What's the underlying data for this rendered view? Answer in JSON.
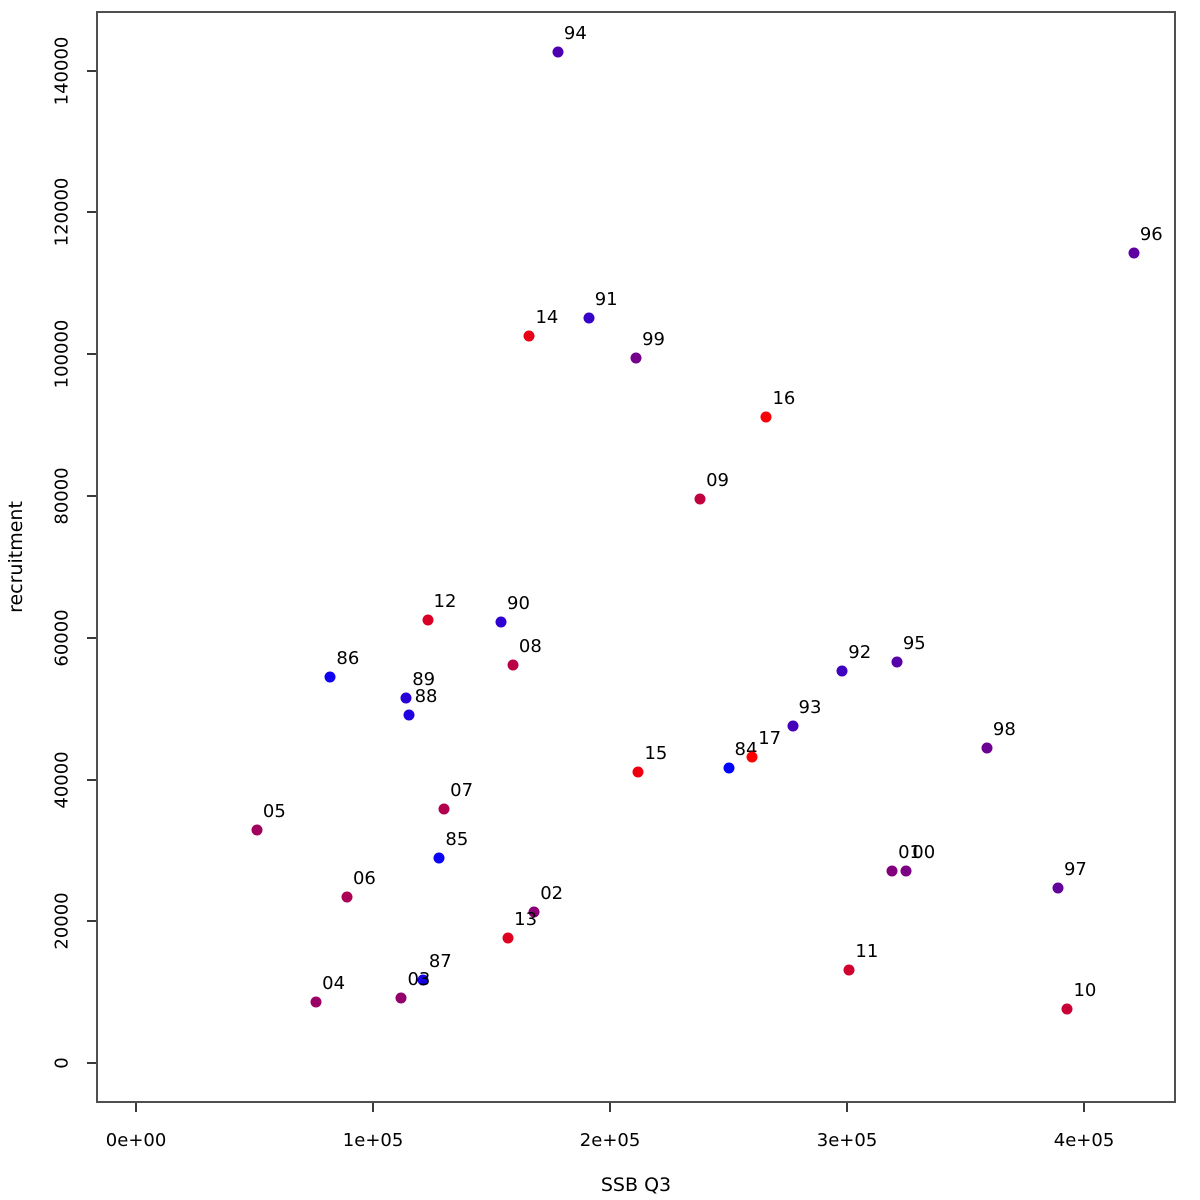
{
  "chart_data": {
    "type": "scatter",
    "title": "",
    "xlabel": "SSB Q3",
    "ylabel": "recruitment",
    "grid": false,
    "legend": "none",
    "xlim": [
      -16900,
      438800
    ],
    "ylim": [
      -5600,
      148400
    ],
    "x_ticks": {
      "values": [
        0,
        100000,
        200000,
        300000,
        400000
      ],
      "labels": [
        "0e+00",
        "1e+05",
        "2e+05",
        "3e+05",
        "4e+05"
      ]
    },
    "y_ticks": {
      "values": [
        0,
        20000,
        40000,
        60000,
        80000,
        100000,
        120000,
        140000
      ],
      "labels": [
        "0",
        "20000",
        "40000",
        "60000",
        "80000",
        "100000",
        "120000",
        "140000"
      ]
    },
    "color_scale": {
      "description": "year gradient blue to red",
      "start_color": "#0000FF",
      "end_color": "#FF0000"
    },
    "points": [
      {
        "label": "84",
        "x": 250000,
        "y": 41600,
        "color": "#0000FF"
      },
      {
        "label": "85",
        "x": 128000,
        "y": 28900,
        "color": "#0800F7"
      },
      {
        "label": "86",
        "x": 82000,
        "y": 54500,
        "color": "#0F00F0"
      },
      {
        "label": "87",
        "x": 121000,
        "y": 11700,
        "color": "#1700E8"
      },
      {
        "label": "88",
        "x": 115000,
        "y": 49100,
        "color": "#1F00E0"
      },
      {
        "label": "89",
        "x": 114000,
        "y": 51500,
        "color": "#2700D8"
      },
      {
        "label": "90",
        "x": 154000,
        "y": 62200,
        "color": "#2E00D1"
      },
      {
        "label": "91",
        "x": 191000,
        "y": 105100,
        "color": "#3600C9"
      },
      {
        "label": "92",
        "x": 298000,
        "y": 55300,
        "color": "#3E00C1"
      },
      {
        "label": "93",
        "x": 277000,
        "y": 47600,
        "color": "#4600B9"
      },
      {
        "label": "94",
        "x": 178000,
        "y": 142600,
        "color": "#4D00B2"
      },
      {
        "label": "95",
        "x": 321000,
        "y": 56600,
        "color": "#5500AA"
      },
      {
        "label": "96",
        "x": 421000,
        "y": 114300,
        "color": "#5D00A2"
      },
      {
        "label": "97",
        "x": 389000,
        "y": 24700,
        "color": "#64009B"
      },
      {
        "label": "98",
        "x": 359000,
        "y": 44400,
        "color": "#6C0093"
      },
      {
        "label": "99",
        "x": 211000,
        "y": 99500,
        "color": "#74008B"
      },
      {
        "label": "00",
        "x": 325000,
        "y": 27100,
        "color": "#7C0083"
      },
      {
        "label": "01",
        "x": 319000,
        "y": 27100,
        "color": "#83007C"
      },
      {
        "label": "02",
        "x": 168000,
        "y": 21400,
        "color": "#8B0074"
      },
      {
        "label": "03",
        "x": 112000,
        "y": 9200,
        "color": "#93006C"
      },
      {
        "label": "04",
        "x": 76000,
        "y": 8700,
        "color": "#9B0064"
      },
      {
        "label": "05",
        "x": 51000,
        "y": 32900,
        "color": "#A2005D"
      },
      {
        "label": "06",
        "x": 89000,
        "y": 23400,
        "color": "#AA0055"
      },
      {
        "label": "07",
        "x": 130000,
        "y": 35800,
        "color": "#B2004D"
      },
      {
        "label": "08",
        "x": 159000,
        "y": 56200,
        "color": "#B90046"
      },
      {
        "label": "09",
        "x": 238000,
        "y": 79600,
        "color": "#C1003E"
      },
      {
        "label": "10",
        "x": 393000,
        "y": 7600,
        "color": "#C90036"
      },
      {
        "label": "11",
        "x": 301000,
        "y": 13100,
        "color": "#D1002E"
      },
      {
        "label": "12",
        "x": 123000,
        "y": 62500,
        "color": "#D80027"
      },
      {
        "label": "13",
        "x": 157000,
        "y": 17600,
        "color": "#E0001F"
      },
      {
        "label": "14",
        "x": 166000,
        "y": 102600,
        "color": "#E80017"
      },
      {
        "label": "15",
        "x": 212000,
        "y": 41100,
        "color": "#EF0010"
      },
      {
        "label": "16",
        "x": 266000,
        "y": 91100,
        "color": "#F70008"
      },
      {
        "label": "17",
        "x": 260000,
        "y": 43200,
        "color": "#FF0000"
      }
    ]
  }
}
